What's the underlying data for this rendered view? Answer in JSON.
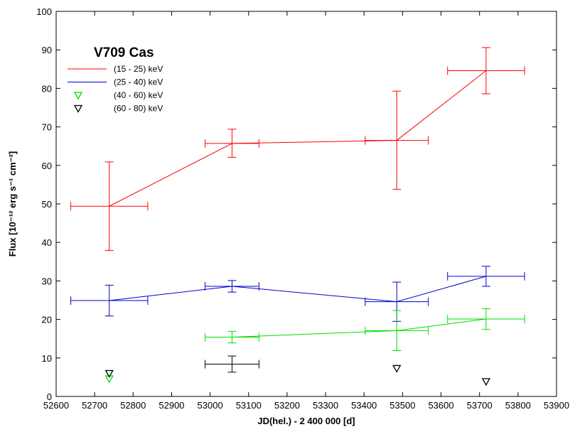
{
  "chart_data": {
    "type": "scatter",
    "title": "V709 Cas",
    "xlabel": "JD(hel.) - 2 400 000 [d]",
    "ylabel": "Flux [10⁻¹² erg s⁻¹ cm⁻²]",
    "xlim": [
      52600,
      53900
    ],
    "ylim": [
      0,
      100
    ],
    "x_ticks": [
      52600,
      52700,
      52800,
      52900,
      53000,
      53100,
      53200,
      53300,
      53400,
      53500,
      53600,
      53700,
      53800,
      53900
    ],
    "y_ticks": [
      0,
      10,
      20,
      30,
      40,
      50,
      60,
      70,
      80,
      90,
      100
    ],
    "legend_position": "top-left",
    "grid": false,
    "series": [
      {
        "name": "(15 - 25) keV",
        "color": "#ff0000",
        "marker": "line",
        "points": [
          {
            "x": 52738,
            "y": 49.4,
            "xerr": 100,
            "ylo": 37.9,
            "yhi": 60.9
          },
          {
            "x": 53057,
            "y": 65.7,
            "xerr": 70,
            "ylo": 62.1,
            "yhi": 69.4
          },
          {
            "x": 53485,
            "y": 66.5,
            "xerr": 82,
            "ylo": 53.8,
            "yhi": 79.3
          },
          {
            "x": 53717,
            "y": 84.6,
            "xerr": 100,
            "ylo": 78.6,
            "yhi": 90.6
          }
        ]
      },
      {
        "name": "(25 - 40) keV",
        "color": "#0000cc",
        "marker": "line",
        "points": [
          {
            "x": 52738,
            "y": 24.9,
            "xerr": 100,
            "ylo": 20.9,
            "yhi": 28.9
          },
          {
            "x": 53057,
            "y": 28.6,
            "xerr": 70,
            "ylo": 27.1,
            "yhi": 30.1
          },
          {
            "x": 53485,
            "y": 24.6,
            "xerr": 82,
            "ylo": 19.5,
            "yhi": 29.7
          },
          {
            "x": 53717,
            "y": 31.2,
            "xerr": 100,
            "ylo": 28.6,
            "yhi": 33.8
          }
        ]
      },
      {
        "name": "(40 - 60) keV",
        "color": "#00dd00",
        "marker": "line",
        "points": [
          {
            "x": 53057,
            "y": 15.4,
            "xerr": 70,
            "ylo": 13.9,
            "yhi": 16.9
          },
          {
            "x": 53485,
            "y": 17.1,
            "xerr": 82,
            "ylo": 11.9,
            "yhi": 22.3
          },
          {
            "x": 53717,
            "y": 20.1,
            "xerr": 100,
            "ylo": 17.4,
            "yhi": 22.8
          }
        ],
        "upper_limits": [
          {
            "x": 52738,
            "y": 4.6
          }
        ]
      },
      {
        "name": "(60 - 80) keV",
        "color": "#000000",
        "marker": "line",
        "points": [
          {
            "x": 53057,
            "y": 8.4,
            "xerr": 70,
            "ylo": 6.3,
            "yhi": 10.5
          }
        ],
        "upper_limits": [
          {
            "x": 52738,
            "y": 6.0
          },
          {
            "x": 53485,
            "y": 7.3
          },
          {
            "x": 53717,
            "y": 3.9
          }
        ]
      }
    ]
  }
}
